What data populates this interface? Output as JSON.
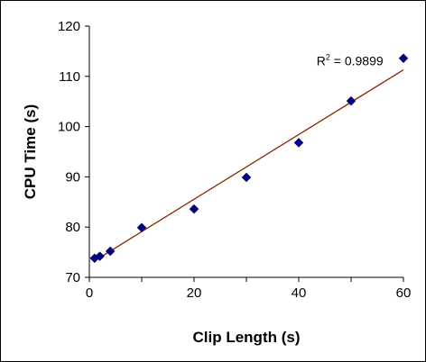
{
  "chart_data": {
    "type": "scatter",
    "xlabel": "Clip Length (s)",
    "ylabel": "CPU Time (s)",
    "xlim": [
      0,
      60
    ],
    "ylim": [
      70,
      120
    ],
    "xticks": [
      "0",
      "20",
      "40",
      "60"
    ],
    "yticks": [
      "70",
      "80",
      "90",
      "100",
      "110",
      "120"
    ],
    "grid": false,
    "series": [
      {
        "marker": "diamond",
        "color": "#000080",
        "points": [
          {
            "x": 1,
            "y": 73.8
          },
          {
            "x": 2,
            "y": 74.2
          },
          {
            "x": 4,
            "y": 75.2
          },
          {
            "x": 10,
            "y": 79.9
          },
          {
            "x": 20,
            "y": 83.6
          },
          {
            "x": 30,
            "y": 89.9
          },
          {
            "x": 40,
            "y": 96.8
          },
          {
            "x": 50,
            "y": 105.1
          },
          {
            "x": 60,
            "y": 113.6
          }
        ]
      }
    ],
    "trendline": {
      "type": "linear",
      "color": "#8B2500",
      "x_start": 1,
      "y_start": 73.3,
      "x_end": 60,
      "y_end": 111.3
    },
    "annotation": {
      "prefix": "R",
      "superscript": "2",
      "suffix": " = 0.9899",
      "at_x": 43.4,
      "at_y": 112.2
    }
  }
}
